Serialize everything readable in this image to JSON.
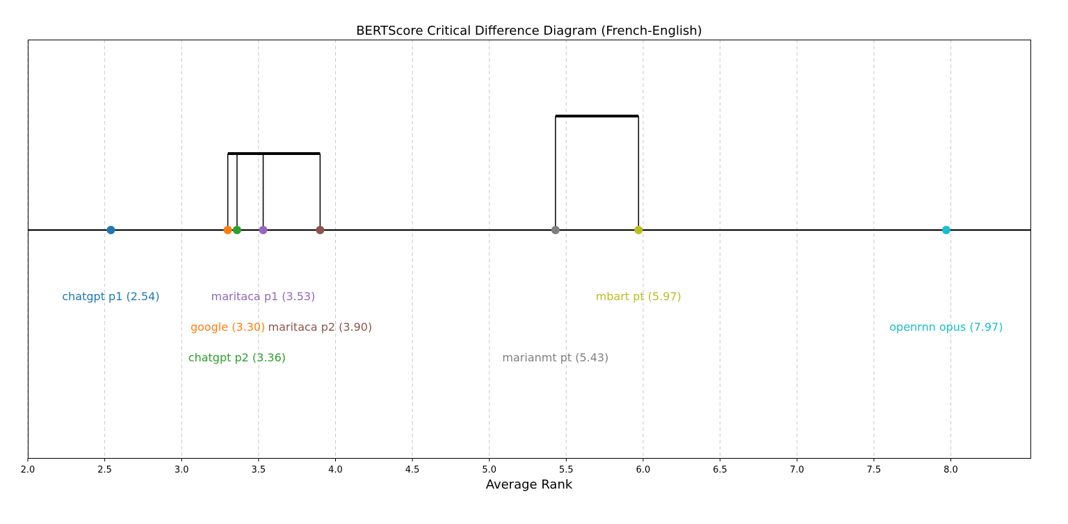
{
  "chart_data": {
    "type": "scatter",
    "title": "BERTScore Critical Difference Diagram (French-English)",
    "xlabel": "Average Rank",
    "xlim": [
      2.0,
      8.5
    ],
    "xticks": [
      2.0,
      2.5,
      3.0,
      3.5,
      4.0,
      4.5,
      5.0,
      5.5,
      6.0,
      6.5,
      7.0,
      7.5,
      8.0
    ],
    "grid": "vertical-dashed",
    "models": [
      {
        "label": "chatgpt p1 (2.54)",
        "rank": 2.54,
        "color": "#1f77b4",
        "row": 0
      },
      {
        "label": "google (3.30)",
        "rank": 3.3,
        "color": "#ff7f0e",
        "row": 1
      },
      {
        "label": "chatgpt p2 (3.36)",
        "rank": 3.36,
        "color": "#2ca02c",
        "row": 2
      },
      {
        "label": "maritaca p1 (3.53)",
        "rank": 3.53,
        "color": "#9467bd",
        "row": 0
      },
      {
        "label": "maritaca p2 (3.90)",
        "rank": 3.9,
        "color": "#8c564b",
        "row": 1
      },
      {
        "label": "marianmt pt (5.43)",
        "rank": 5.43,
        "color": "#7f7f7f",
        "row": 2
      },
      {
        "label": "mbart pt (5.97)",
        "rank": 5.97,
        "color": "#bcbd22",
        "row": 0
      },
      {
        "label": "openrnn opus (7.97)",
        "rank": 7.97,
        "color": "#17becf",
        "row": 1
      }
    ],
    "cliques": [
      {
        "start": 3.3,
        "end": 3.9,
        "members": [
          3.3,
          3.36,
          3.53,
          3.9
        ],
        "level": 0
      },
      {
        "start": 5.43,
        "end": 5.97,
        "members": [
          5.43,
          5.97
        ],
        "level": 1
      }
    ]
  }
}
